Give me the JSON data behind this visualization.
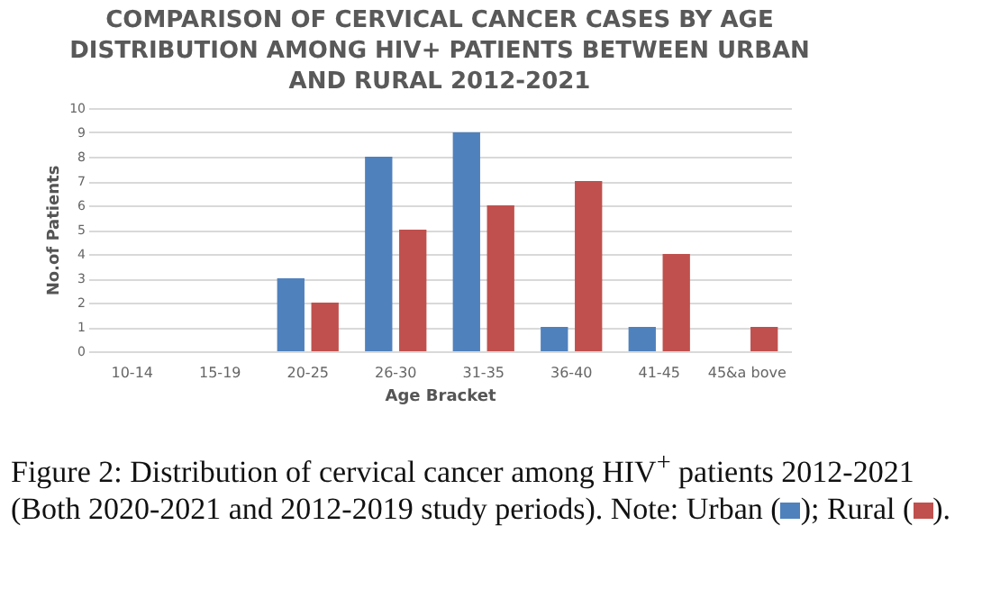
{
  "chart_data": {
    "type": "bar",
    "title": [
      "COMPARISON OF CERVICAL CANCER CASES BY AGE",
      "DISTRIBUTION AMONG HIV+ PATIENTS BETWEEN URBAN",
      "AND RURAL 2012-2021"
    ],
    "xlabel": "Age Bracket",
    "ylabel": "No.of Patients",
    "categories": [
      "10-14",
      "15-19",
      "20-25",
      "26-30",
      "31-35",
      "36-40",
      "41-45",
      "45&a bove"
    ],
    "series": [
      {
        "color": "#4f81bd",
        "values": [
          0,
          0,
          3,
          8,
          9,
          1,
          1,
          0
        ]
      },
      {
        "color": "#c0504d",
        "values": [
          0,
          0,
          2,
          5,
          6,
          7,
          4,
          1
        ]
      }
    ],
    "ylim": [
      0,
      10
    ],
    "yticks": [
      0,
      1,
      2,
      3,
      4,
      5,
      6,
      7,
      8,
      9,
      10
    ],
    "grid": "y",
    "annotations": [
      "Figure 2: Distribution of cervical cancer among HIV$^{+}$ patients 2012-2021 (Both 2020-2021 and 2012-2019 study periods). Note: Urban (",
      "); Rural (",
      ")."
    ]
  }
}
